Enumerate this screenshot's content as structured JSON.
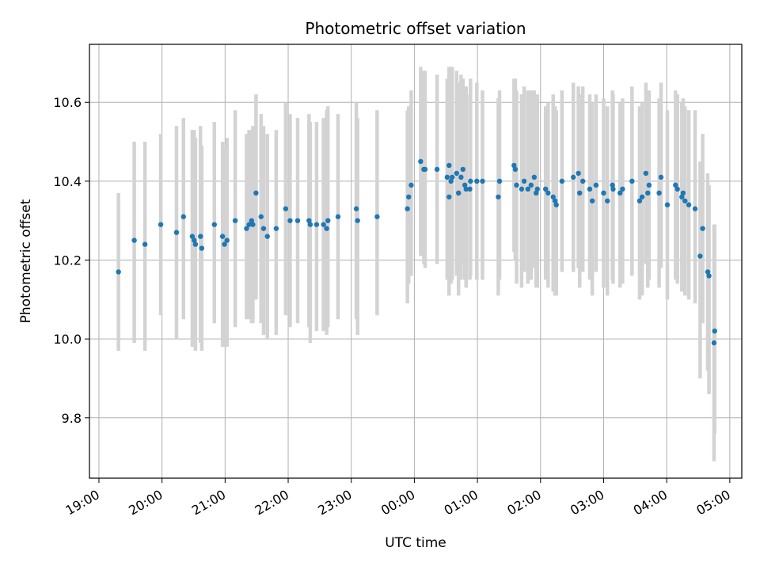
{
  "chart_data": {
    "type": "scatter",
    "title": "Photometric offset variation",
    "xlabel": "UTC time",
    "ylabel": "Photometric offset",
    "grid": true,
    "legend": "none",
    "x_ticks": [
      "19:00",
      "20:00",
      "21:00",
      "22:00",
      "23:00",
      "00:00",
      "01:00",
      "02:00",
      "03:00",
      "04:00",
      "05:00"
    ],
    "y_ticks": [
      "9.8",
      "10.0",
      "10.2",
      "10.4",
      "10.6"
    ],
    "colors": {
      "points": "#1f77b4",
      "errorbars": "#d3d3d3",
      "grid": "#b0b0b0"
    },
    "x_unit": "UTC hours (values >= 24 are after midnight)",
    "xlim": [
      18.85,
      29.19
    ],
    "ylim": [
      9.647,
      10.747
    ],
    "series": [
      {
        "points": [
          [
            19.31,
            10.17,
            10.37,
            9.97
          ],
          [
            19.56,
            10.25,
            10.5,
            9.99
          ],
          [
            19.73,
            10.24,
            10.5,
            9.97
          ],
          [
            19.98,
            10.29,
            10.52,
            10.06
          ],
          [
            20.23,
            10.27,
            10.54,
            10.0
          ],
          [
            20.34,
            10.31,
            10.56,
            10.05
          ],
          [
            20.48,
            10.26,
            10.53,
            9.98
          ],
          [
            20.51,
            10.25,
            10.53,
            9.98
          ],
          [
            20.53,
            10.24,
            10.51,
            9.97
          ],
          [
            20.61,
            10.26,
            10.54,
            9.99
          ],
          [
            20.63,
            10.23,
            10.49,
            9.97
          ],
          [
            20.83,
            10.29,
            10.55,
            10.04
          ],
          [
            20.96,
            10.26,
            10.5,
            9.98
          ],
          [
            20.99,
            10.24,
            10.49,
            9.98
          ],
          [
            21.03,
            10.25,
            10.51,
            9.98
          ],
          [
            21.16,
            10.3,
            10.58,
            10.03
          ],
          [
            21.34,
            10.28,
            10.52,
            10.05
          ],
          [
            21.38,
            10.29,
            10.53,
            10.05
          ],
          [
            21.42,
            10.3,
            10.53,
            10.04
          ],
          [
            21.44,
            10.29,
            10.54,
            10.04
          ],
          [
            21.49,
            10.37,
            10.62,
            10.1
          ],
          [
            21.57,
            10.31,
            10.57,
            10.04
          ],
          [
            21.61,
            10.28,
            10.54,
            10.01
          ],
          [
            21.67,
            10.26,
            10.52,
            10.0
          ],
          [
            21.81,
            10.28,
            10.53,
            10.01
          ],
          [
            21.96,
            10.33,
            10.6,
            10.06
          ],
          [
            22.03,
            10.3,
            10.57,
            10.03
          ],
          [
            22.15,
            10.3,
            10.56,
            10.04
          ],
          [
            22.33,
            10.3,
            10.57,
            10.03
          ],
          [
            22.35,
            10.29,
            10.55,
            9.99
          ],
          [
            22.45,
            10.29,
            10.55,
            10.02
          ],
          [
            22.56,
            10.29,
            10.56,
            10.02
          ],
          [
            22.61,
            10.28,
            10.58,
            10.01
          ],
          [
            22.63,
            10.3,
            10.59,
            10.03
          ],
          [
            22.79,
            10.31,
            10.57,
            10.05
          ],
          [
            23.08,
            10.33,
            10.6,
            10.05
          ],
          [
            23.1,
            10.3,
            10.56,
            10.01
          ],
          [
            23.41,
            10.31,
            10.58,
            10.06
          ],
          [
            23.89,
            10.33,
            10.58,
            10.09
          ],
          [
            23.91,
            10.36,
            10.59,
            10.14
          ],
          [
            23.95,
            10.39,
            10.63,
            10.16
          ],
          [
            24.1,
            10.45,
            10.69,
            10.21
          ],
          [
            24.15,
            10.43,
            10.68,
            10.19
          ],
          [
            24.17,
            10.43,
            10.68,
            10.18
          ],
          [
            24.36,
            10.43,
            10.67,
            10.19
          ],
          [
            24.52,
            10.41,
            10.66,
            10.15
          ],
          [
            24.55,
            10.44,
            10.69,
            10.19
          ],
          [
            24.55,
            10.36,
            10.62,
            10.11
          ],
          [
            24.58,
            10.4,
            10.69,
            10.14
          ],
          [
            24.6,
            10.41,
            10.69,
            10.15
          ],
          [
            24.67,
            10.42,
            10.68,
            10.16
          ],
          [
            24.7,
            10.37,
            10.65,
            10.11
          ],
          [
            24.74,
            10.41,
            10.67,
            10.15
          ],
          [
            24.77,
            10.43,
            10.66,
            10.19
          ],
          [
            24.8,
            10.39,
            10.63,
            10.15
          ],
          [
            24.82,
            10.38,
            10.64,
            10.13
          ],
          [
            24.88,
            10.38,
            10.62,
            10.15
          ],
          [
            24.89,
            10.4,
            10.66,
            10.16
          ],
          [
            24.99,
            10.4,
            10.65,
            10.15
          ],
          [
            25.08,
            10.4,
            10.63,
            10.15
          ],
          [
            25.33,
            10.36,
            10.61,
            10.11
          ],
          [
            25.35,
            10.4,
            10.63,
            10.15
          ],
          [
            25.58,
            10.44,
            10.66,
            10.22
          ],
          [
            25.6,
            10.43,
            10.66,
            10.2
          ],
          [
            25.62,
            10.39,
            10.63,
            10.14
          ],
          [
            25.7,
            10.38,
            10.62,
            10.13
          ],
          [
            25.74,
            10.4,
            10.64,
            10.17
          ],
          [
            25.8,
            10.38,
            10.63,
            10.14
          ],
          [
            25.85,
            10.39,
            10.63,
            10.15
          ],
          [
            25.9,
            10.41,
            10.63,
            10.18
          ],
          [
            25.93,
            10.37,
            10.61,
            10.13
          ],
          [
            25.95,
            10.38,
            10.62,
            10.13
          ],
          [
            26.08,
            10.38,
            10.59,
            10.15
          ],
          [
            26.12,
            10.37,
            10.6,
            10.13
          ],
          [
            26.2,
            10.36,
            10.62,
            10.12
          ],
          [
            26.23,
            10.35,
            10.59,
            10.11
          ],
          [
            26.25,
            10.34,
            10.58,
            10.11
          ],
          [
            26.34,
            10.4,
            10.63,
            10.17
          ],
          [
            26.52,
            10.41,
            10.65,
            10.17
          ],
          [
            26.6,
            10.42,
            10.64,
            10.18
          ],
          [
            26.62,
            10.37,
            10.62,
            10.13
          ],
          [
            26.67,
            10.4,
            10.64,
            10.17
          ],
          [
            26.78,
            10.38,
            10.62,
            10.15
          ],
          [
            26.82,
            10.35,
            10.6,
            10.11
          ],
          [
            26.88,
            10.39,
            10.62,
            10.17
          ],
          [
            27.0,
            10.37,
            10.61,
            10.13
          ],
          [
            27.06,
            10.35,
            10.59,
            10.11
          ],
          [
            27.14,
            10.39,
            10.63,
            10.15
          ],
          [
            27.15,
            10.38,
            10.62,
            10.14
          ],
          [
            27.26,
            10.37,
            10.6,
            10.13
          ],
          [
            27.3,
            10.38,
            10.61,
            10.14
          ],
          [
            27.45,
            10.4,
            10.64,
            10.16
          ],
          [
            27.57,
            10.35,
            10.59,
            10.1
          ],
          [
            27.61,
            10.36,
            10.6,
            10.11
          ],
          [
            27.67,
            10.42,
            10.65,
            10.19
          ],
          [
            27.7,
            10.37,
            10.61,
            10.13
          ],
          [
            27.72,
            10.39,
            10.63,
            10.15
          ],
          [
            27.88,
            10.37,
            10.61,
            10.13
          ],
          [
            27.91,
            10.41,
            10.65,
            10.18
          ],
          [
            28.01,
            10.34,
            10.58,
            10.1
          ],
          [
            28.14,
            10.39,
            10.63,
            10.15
          ],
          [
            28.17,
            10.38,
            10.62,
            10.14
          ],
          [
            28.24,
            10.36,
            10.6,
            10.12
          ],
          [
            28.26,
            10.37,
            10.61,
            10.13
          ],
          [
            28.29,
            10.35,
            10.59,
            10.11
          ],
          [
            28.35,
            10.34,
            10.58,
            10.1
          ],
          [
            28.45,
            10.33,
            10.58,
            10.09
          ],
          [
            28.53,
            10.21,
            10.45,
            9.9
          ],
          [
            28.57,
            10.28,
            10.52,
            10.04
          ],
          [
            28.65,
            10.17,
            10.42,
            9.92
          ],
          [
            28.67,
            10.16,
            10.39,
            9.86
          ],
          [
            28.76,
            10.02,
            10.29,
            9.76
          ],
          [
            28.75,
            9.99,
            10.29,
            9.69
          ]
        ]
      }
    ]
  }
}
